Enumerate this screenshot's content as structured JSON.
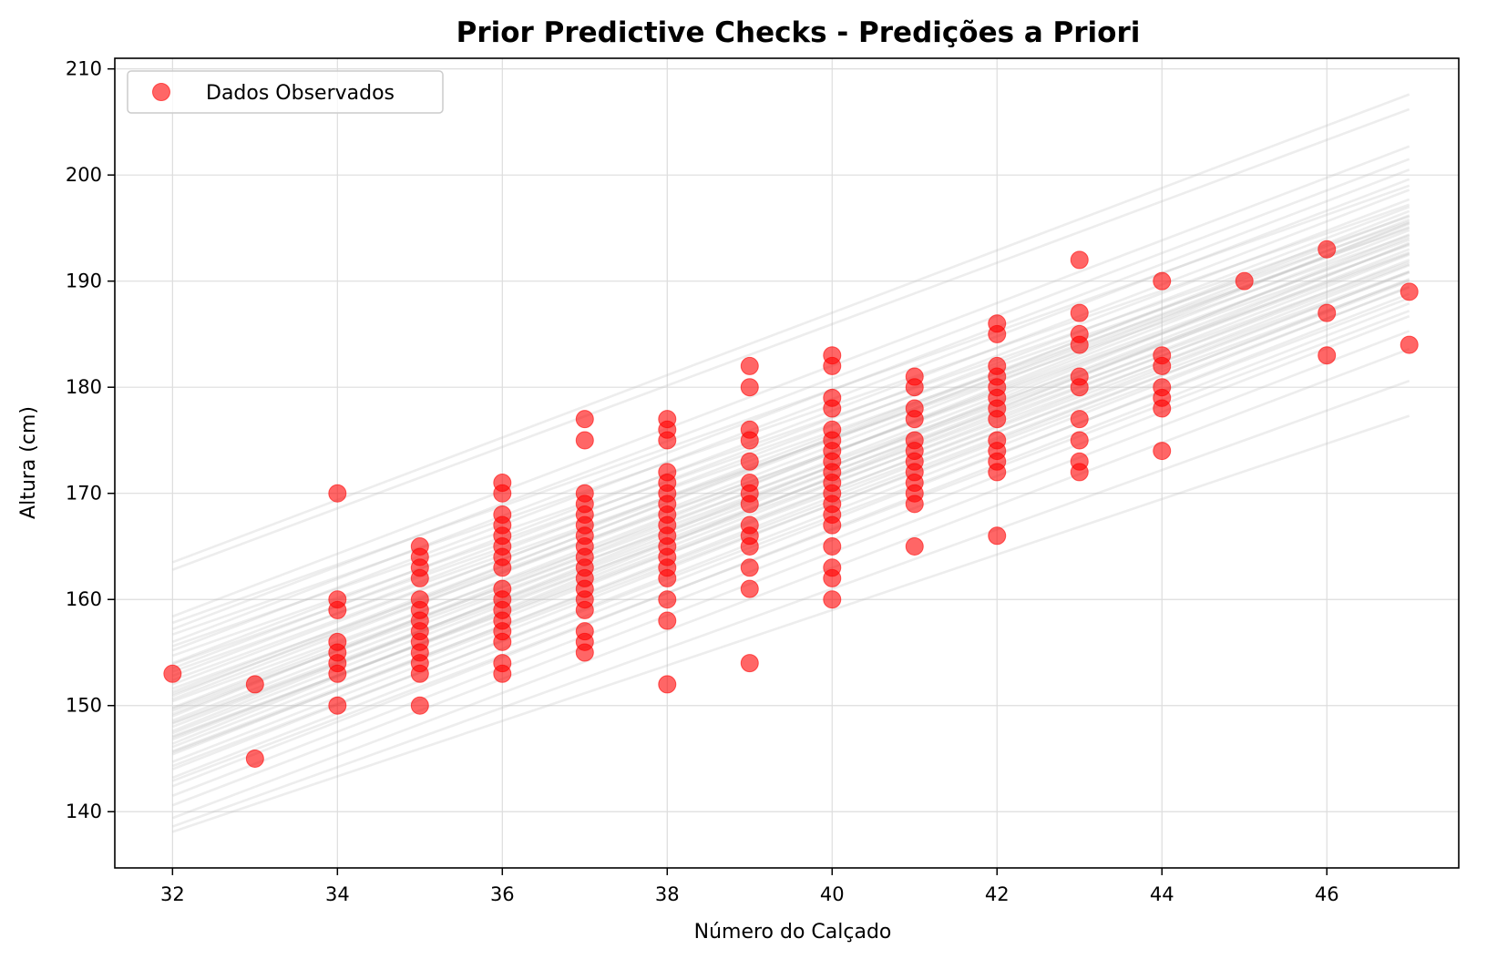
{
  "chart_data": {
    "type": "scatter",
    "title": "Prior Predictive Checks - Predições a Priori",
    "xlabel": "Número do Calçado",
    "ylabel": "Altura (cm)",
    "xlim": [
      31.3,
      47.6
    ],
    "ylim": [
      134.7,
      211.0
    ],
    "xticks": [
      32,
      34,
      36,
      38,
      40,
      42,
      44,
      46
    ],
    "yticks": [
      140,
      150,
      160,
      170,
      180,
      190,
      200,
      210
    ],
    "grid": true,
    "legend": {
      "placement": "top-left",
      "entries": [
        "Dados Observados"
      ]
    },
    "colors": {
      "points": "#ff0000",
      "prior_lines": "#bdbdbd",
      "grid": "#dddddd"
    },
    "series": [
      {
        "name": "Dados Observados",
        "points": [
          [
            32,
            153
          ],
          [
            33,
            152
          ],
          [
            33,
            145
          ],
          [
            34,
            170
          ],
          [
            34,
            160
          ],
          [
            34,
            159
          ],
          [
            34,
            156
          ],
          [
            34,
            155
          ],
          [
            34,
            154
          ],
          [
            34,
            153
          ],
          [
            34,
            150
          ],
          [
            35,
            165
          ],
          [
            35,
            164
          ],
          [
            35,
            163
          ],
          [
            35,
            162
          ],
          [
            35,
            160
          ],
          [
            35,
            159
          ],
          [
            35,
            158
          ],
          [
            35,
            157
          ],
          [
            35,
            156
          ],
          [
            35,
            155
          ],
          [
            35,
            154
          ],
          [
            35,
            153
          ],
          [
            35,
            150
          ],
          [
            36,
            171
          ],
          [
            36,
            170
          ],
          [
            36,
            168
          ],
          [
            36,
            167
          ],
          [
            36,
            166
          ],
          [
            36,
            165
          ],
          [
            36,
            164
          ],
          [
            36,
            163
          ],
          [
            36,
            161
          ],
          [
            36,
            160
          ],
          [
            36,
            159
          ],
          [
            36,
            158
          ],
          [
            36,
            157
          ],
          [
            36,
            156
          ],
          [
            36,
            154
          ],
          [
            36,
            153
          ],
          [
            37,
            177
          ],
          [
            37,
            175
          ],
          [
            37,
            170
          ],
          [
            37,
            169
          ],
          [
            37,
            168
          ],
          [
            37,
            167
          ],
          [
            37,
            166
          ],
          [
            37,
            165
          ],
          [
            37,
            164
          ],
          [
            37,
            163
          ],
          [
            37,
            162
          ],
          [
            37,
            161
          ],
          [
            37,
            160
          ],
          [
            37,
            159
          ],
          [
            37,
            157
          ],
          [
            37,
            156
          ],
          [
            37,
            155
          ],
          [
            38,
            177
          ],
          [
            38,
            176
          ],
          [
            38,
            175
          ],
          [
            38,
            172
          ],
          [
            38,
            171
          ],
          [
            38,
            170
          ],
          [
            38,
            169
          ],
          [
            38,
            168
          ],
          [
            38,
            167
          ],
          [
            38,
            166
          ],
          [
            38,
            165
          ],
          [
            38,
            164
          ],
          [
            38,
            163
          ],
          [
            38,
            162
          ],
          [
            38,
            160
          ],
          [
            38,
            158
          ],
          [
            38,
            152
          ],
          [
            39,
            182
          ],
          [
            39,
            180
          ],
          [
            39,
            176
          ],
          [
            39,
            175
          ],
          [
            39,
            173
          ],
          [
            39,
            171
          ],
          [
            39,
            170
          ],
          [
            39,
            169
          ],
          [
            39,
            167
          ],
          [
            39,
            166
          ],
          [
            39,
            165
          ],
          [
            39,
            163
          ],
          [
            39,
            161
          ],
          [
            39,
            154
          ],
          [
            40,
            183
          ],
          [
            40,
            182
          ],
          [
            40,
            179
          ],
          [
            40,
            178
          ],
          [
            40,
            176
          ],
          [
            40,
            175
          ],
          [
            40,
            174
          ],
          [
            40,
            173
          ],
          [
            40,
            172
          ],
          [
            40,
            171
          ],
          [
            40,
            170
          ],
          [
            40,
            169
          ],
          [
            40,
            168
          ],
          [
            40,
            167
          ],
          [
            40,
            165
          ],
          [
            40,
            163
          ],
          [
            40,
            162
          ],
          [
            40,
            160
          ],
          [
            41,
            181
          ],
          [
            41,
            180
          ],
          [
            41,
            178
          ],
          [
            41,
            177
          ],
          [
            41,
            175
          ],
          [
            41,
            174
          ],
          [
            41,
            173
          ],
          [
            41,
            172
          ],
          [
            41,
            171
          ],
          [
            41,
            170
          ],
          [
            41,
            169
          ],
          [
            41,
            165
          ],
          [
            42,
            186
          ],
          [
            42,
            185
          ],
          [
            42,
            182
          ],
          [
            42,
            181
          ],
          [
            42,
            180
          ],
          [
            42,
            179
          ],
          [
            42,
            178
          ],
          [
            42,
            177
          ],
          [
            42,
            175
          ],
          [
            42,
            174
          ],
          [
            42,
            173
          ],
          [
            42,
            172
          ],
          [
            42,
            166
          ],
          [
            43,
            192
          ],
          [
            43,
            187
          ],
          [
            43,
            185
          ],
          [
            43,
            184
          ],
          [
            43,
            181
          ],
          [
            43,
            180
          ],
          [
            43,
            177
          ],
          [
            43,
            175
          ],
          [
            43,
            173
          ],
          [
            43,
            172
          ],
          [
            44,
            190
          ],
          [
            44,
            183
          ],
          [
            44,
            182
          ],
          [
            44,
            180
          ],
          [
            44,
            179
          ],
          [
            44,
            178
          ],
          [
            44,
            174
          ],
          [
            45,
            190
          ],
          [
            46,
            193
          ],
          [
            46,
            187
          ],
          [
            46,
            183
          ],
          [
            47,
            189
          ],
          [
            47,
            184
          ]
        ]
      },
      {
        "name": "",
        "lines": [
          [
            163.5,
            207.6
          ],
          [
            162.8,
            206.2
          ],
          [
            158.4,
            202.7
          ],
          [
            157.2,
            201.5
          ],
          [
            156.0,
            200.5
          ],
          [
            155.2,
            199.6
          ],
          [
            154.0,
            198.6
          ],
          [
            153.5,
            197.7
          ],
          [
            152.8,
            197.0
          ],
          [
            152.0,
            196.2
          ],
          [
            151.3,
            195.8
          ],
          [
            150.6,
            195.4
          ],
          [
            149.8,
            194.8
          ],
          [
            149.2,
            194.1
          ],
          [
            148.6,
            193.5
          ],
          [
            148.0,
            193.0
          ],
          [
            147.4,
            192.5
          ],
          [
            146.8,
            192.0
          ],
          [
            146.1,
            191.5
          ],
          [
            145.4,
            190.9
          ],
          [
            144.7,
            190.2
          ],
          [
            144.0,
            189.5
          ],
          [
            143.2,
            188.8
          ],
          [
            142.4,
            187.9
          ],
          [
            141.5,
            186.7
          ],
          [
            140.6,
            185.3
          ],
          [
            139.4,
            183.6
          ],
          [
            138.6,
            180.6
          ],
          [
            138.1,
            177.3
          ],
          [
            157.8,
            199.0
          ],
          [
            156.7,
            197.2
          ],
          [
            155.6,
            196.1
          ],
          [
            154.7,
            195.6
          ],
          [
            153.9,
            195.0
          ],
          [
            153.2,
            194.3
          ],
          [
            151.6,
            193.4
          ],
          [
            150.4,
            192.7
          ],
          [
            149.5,
            191.8
          ],
          [
            148.3,
            190.9
          ],
          [
            147.1,
            190.1
          ],
          [
            145.6,
            189.4
          ],
          [
            144.3,
            188.4
          ],
          [
            142.9,
            187.2
          ],
          [
            150.9,
            196.6
          ],
          [
            149.0,
            195.5
          ],
          [
            147.6,
            194.4
          ],
          [
            146.4,
            193.6
          ],
          [
            152.4,
            195.1
          ],
          [
            151.1,
            193.9
          ],
          [
            149.7,
            192.6
          ],
          [
            148.4,
            191.6
          ],
          [
            147.0,
            190.8
          ],
          [
            145.7,
            190.0
          ]
        ]
      }
    ]
  }
}
